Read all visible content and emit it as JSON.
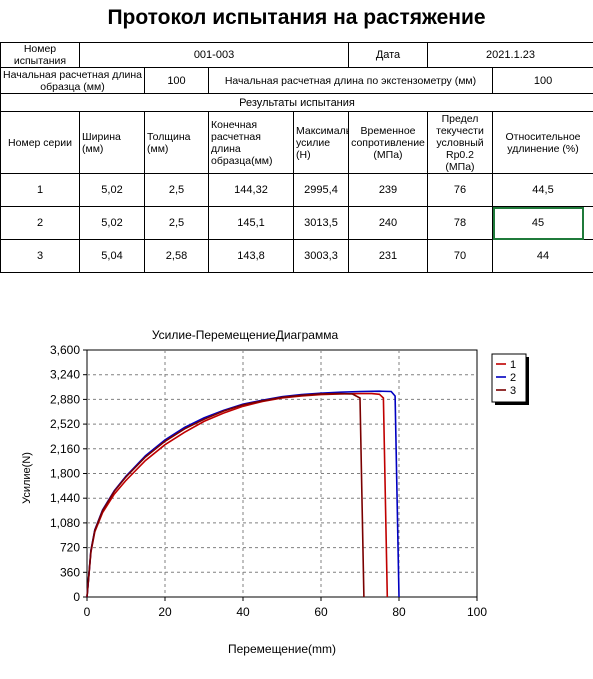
{
  "title": "Протокол испытания на растяжение",
  "info": {
    "sample_no_label": "Номер испытания",
    "sample_no": "001-003",
    "date_label": "Дата",
    "date": "2021.1.23",
    "gauge_len_label": "Начальная расчетная длина образца (мм)",
    "gauge_len": "100",
    "ext_len_label": "Начальная расчетная длина по экстензометру (мм)",
    "ext_len": "100"
  },
  "results_title": "Результаты испытания",
  "columns": [
    "Номер серии",
    "Ширина (мм)",
    "Толщина (мм)",
    "Конечная расчетная длина образца(мм)",
    "Максимальное усилие (Н)",
    "Временное сопротивление (МПа)",
    "Предел текучести условный Rp0.2 (МПа)",
    "Относительное удлинение (%)"
  ],
  "rows": [
    [
      "1",
      "5,02",
      "2,5",
      "144,32",
      "2995,4",
      "239",
      "76",
      "44,5"
    ],
    [
      "2",
      "5,02",
      "2,5",
      "145,1",
      "3013,5",
      "240",
      "78",
      "45"
    ],
    [
      "3",
      "5,04",
      "2,58",
      "143,8",
      "3003,3",
      "231",
      "70",
      "44"
    ]
  ],
  "chart_data": {
    "type": "line",
    "title": "Усилие-ПеремещениеДиаграмма",
    "xlabel": "Перемещение(mm)",
    "ylabel": "Усилие(N)",
    "xlim": [
      0,
      100
    ],
    "ylim": [
      0,
      3600
    ],
    "xticks": [
      "0",
      "20",
      "40",
      "60",
      "80",
      "100"
    ],
    "yticks": [
      "0",
      "360",
      "720",
      "1,080",
      "1,440",
      "1,800",
      "2,160",
      "2,520",
      "2,880",
      "3,240",
      "3,600"
    ],
    "grid": true,
    "legend_position": "right",
    "series": [
      {
        "name": "1",
        "color": "#c00000",
        "x": [
          0,
          1,
          2,
          4,
          7,
          10,
          15,
          20,
          25,
          30,
          35,
          40,
          45,
          50,
          55,
          60,
          65,
          70,
          73,
          75,
          76,
          77
        ],
        "y": [
          0,
          650,
          950,
          1230,
          1500,
          1700,
          1990,
          2220,
          2400,
          2560,
          2680,
          2780,
          2850,
          2900,
          2930,
          2950,
          2960,
          2965,
          2965,
          2955,
          2900,
          0
        ]
      },
      {
        "name": "2",
        "color": "#0000c0",
        "x": [
          0,
          1,
          2,
          4,
          7,
          10,
          15,
          20,
          25,
          30,
          35,
          40,
          45,
          50,
          55,
          60,
          65,
          70,
          75,
          78,
          79,
          80
        ],
        "y": [
          0,
          680,
          980,
          1270,
          1550,
          1760,
          2060,
          2290,
          2470,
          2610,
          2720,
          2810,
          2870,
          2920,
          2950,
          2970,
          2985,
          2995,
          3000,
          2995,
          2930,
          0
        ]
      },
      {
        "name": "3",
        "color": "#7a0000",
        "x": [
          0,
          1,
          2,
          4,
          7,
          10,
          15,
          20,
          25,
          30,
          35,
          40,
          45,
          50,
          55,
          60,
          65,
          68,
          70,
          71
        ],
        "y": [
          0,
          670,
          970,
          1260,
          1540,
          1750,
          2040,
          2270,
          2450,
          2590,
          2710,
          2800,
          2860,
          2910,
          2940,
          2960,
          2965,
          2960,
          2900,
          0
        ]
      }
    ]
  }
}
